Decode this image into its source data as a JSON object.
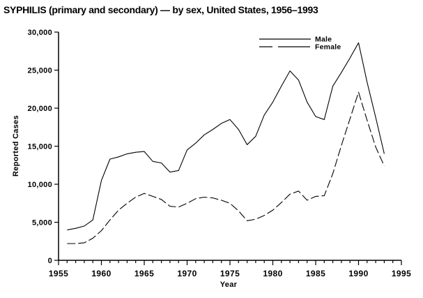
{
  "title": "SYPHILIS (primary and secondary) — by sex, United States, 1956–1993",
  "chart_data": {
    "type": "line",
    "title": "SYPHILIS (primary and secondary) — by sex, United States, 1956–1993",
    "xlabel": "Year",
    "ylabel": "Reported Cases",
    "xlim": [
      1955,
      1995
    ],
    "ylim": [
      0,
      30000
    ],
    "grid": false,
    "background": "#ffffff",
    "line_color": "#000000",
    "legend_position": "top-center-inside",
    "x_major_ticks": [
      1955,
      1960,
      1965,
      1970,
      1975,
      1980,
      1985,
      1990,
      1995
    ],
    "x_tick_labels": [
      "1955",
      "1960",
      "1965",
      "1970",
      "1975",
      "1980",
      "1985",
      "1990",
      "1995"
    ],
    "x_minor_tick_interval": 1,
    "y_major_ticks": [
      0,
      5000,
      10000,
      15000,
      20000,
      25000,
      30000
    ],
    "y_tick_labels": [
      "0",
      "5,000",
      "10,000",
      "15,000",
      "20,000",
      "25,000",
      "30,000"
    ],
    "x": [
      1956,
      1957,
      1958,
      1959,
      1960,
      1961,
      1962,
      1963,
      1964,
      1965,
      1966,
      1967,
      1968,
      1969,
      1970,
      1971,
      1972,
      1973,
      1974,
      1975,
      1976,
      1977,
      1978,
      1979,
      1980,
      1981,
      1982,
      1983,
      1984,
      1985,
      1986,
      1987,
      1988,
      1989,
      1990,
      1991,
      1992,
      1993
    ],
    "series": [
      {
        "name": "Male",
        "style": "solid",
        "values": [
          4000,
          4200,
          4500,
          5300,
          10500,
          13300,
          13600,
          14000,
          14200,
          14300,
          13000,
          12800,
          11600,
          11800,
          14500,
          15400,
          16500,
          17200,
          18000,
          18500,
          17200,
          15200,
          16300,
          19100,
          20800,
          22900,
          24900,
          23700,
          20800,
          18900,
          18500,
          22900,
          24700,
          26600,
          28600,
          23400,
          18800,
          14000
        ]
      },
      {
        "name": "Female",
        "style": "dashed",
        "values": [
          2200,
          2200,
          2300,
          2900,
          3900,
          5300,
          6600,
          7500,
          8300,
          8800,
          8400,
          8000,
          7100,
          7000,
          7500,
          8100,
          8300,
          8200,
          7900,
          7500,
          6500,
          5200,
          5400,
          5900,
          6600,
          7600,
          8700,
          9100,
          7900,
          8400,
          8500,
          11400,
          15100,
          18600,
          22100,
          18400,
          14900,
          12400
        ]
      }
    ]
  }
}
